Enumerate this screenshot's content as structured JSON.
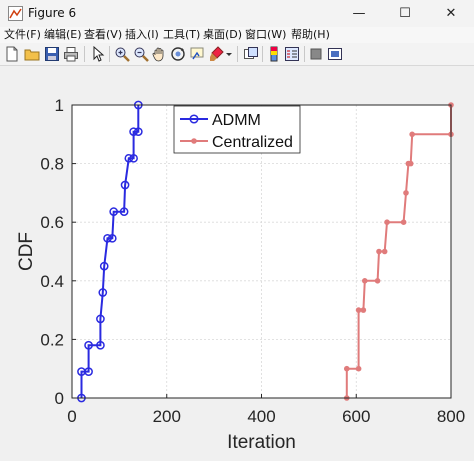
{
  "window": {
    "title": "Figure 6",
    "minimize": "—",
    "maximize": "☐",
    "close": "✕"
  },
  "menu": [
    "文件(F)",
    "编辑(E)",
    "查看(V)",
    "插入(I)",
    "工具(T)",
    "桌面(D)",
    "窗口(W)",
    "帮助(H)"
  ],
  "toolbar": [
    "new-file-icon",
    "open-folder-icon",
    "save-icon",
    "print-icon",
    "pointer-icon",
    "zoom-in-icon",
    "zoom-out-icon",
    "pan-icon",
    "rotate-3d-icon",
    "data-cursor-icon",
    "brush-icon",
    "colorbar-icon",
    "legend-icon",
    "hide-plot-tools-icon",
    "show-plot-tools-icon"
  ],
  "chart_data": {
    "type": "line",
    "xlabel": "Iteration",
    "ylabel": "CDF",
    "xlim": [
      0,
      800
    ],
    "ylim": [
      0,
      1
    ],
    "xticks": [
      0,
      200,
      400,
      600,
      800
    ],
    "yticks": [
      0,
      0.2,
      0.4,
      0.6,
      0.8,
      1
    ],
    "xtick_labels": [
      "0",
      "200",
      "400",
      "600",
      "800"
    ],
    "ytick_labels": [
      "0",
      "0.2",
      "0.4",
      "0.6",
      "0.8",
      "1"
    ],
    "grid": true,
    "legend_position": "top",
    "series": [
      {
        "name": "ADMM",
        "color": "#2a2ae0",
        "marker": "circle",
        "step": true,
        "points": [
          [
            20,
            0
          ],
          [
            20,
            0.09
          ],
          [
            35,
            0.09
          ],
          [
            35,
            0.18
          ],
          [
            60,
            0.18
          ],
          [
            60,
            0.27
          ],
          [
            65,
            0.36
          ],
          [
            68,
            0.45
          ],
          [
            75,
            0.545
          ],
          [
            85,
            0.545
          ],
          [
            88,
            0.636
          ],
          [
            110,
            0.636
          ],
          [
            112,
            0.727
          ],
          [
            120,
            0.818
          ],
          [
            130,
            0.818
          ],
          [
            130,
            0.909
          ],
          [
            140,
            0.909
          ],
          [
            140,
            1.0
          ]
        ]
      },
      {
        "name": "Centralized",
        "color": "#e07b7b",
        "marker": "dot",
        "step": true,
        "points": [
          [
            580,
            0
          ],
          [
            580,
            0.1
          ],
          [
            605,
            0.1
          ],
          [
            605,
            0.3
          ],
          [
            615,
            0.3
          ],
          [
            618,
            0.4
          ],
          [
            645,
            0.4
          ],
          [
            648,
            0.5
          ],
          [
            660,
            0.5
          ],
          [
            665,
            0.6
          ],
          [
            700,
            0.6
          ],
          [
            705,
            0.7
          ],
          [
            710,
            0.8
          ],
          [
            715,
            0.8
          ],
          [
            718,
            0.9
          ],
          [
            800,
            0.9
          ],
          [
            800,
            1.0
          ]
        ]
      }
    ]
  }
}
